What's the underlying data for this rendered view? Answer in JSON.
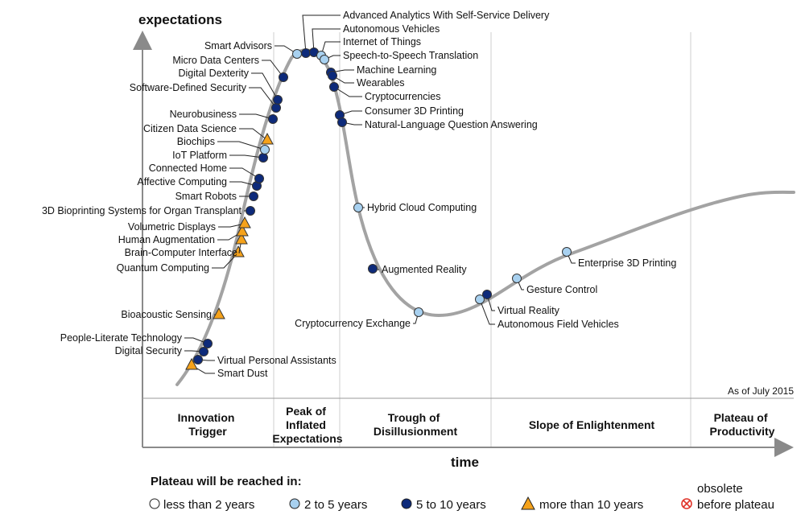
{
  "axes": {
    "y_label": "expectations",
    "x_label": "time"
  },
  "as_of": "As of July 2015",
  "phases": [
    {
      "id": "innovation-trigger",
      "lines": [
        "Innovation",
        "Trigger"
      ]
    },
    {
      "id": "peak",
      "lines": [
        "Peak of",
        "Inflated",
        "Expectations"
      ]
    },
    {
      "id": "trough",
      "lines": [
        "Trough of",
        "Disillusionment"
      ]
    },
    {
      "id": "slope",
      "lines": [
        "Slope of Enlightenment"
      ]
    },
    {
      "id": "plateau",
      "lines": [
        "Plateau of",
        "Productivity"
      ]
    }
  ],
  "legend": {
    "title": "Plateau will be reached in:",
    "items": [
      {
        "key": "lt2",
        "label": "less than 2 years",
        "marker": "circle",
        "color": "#ffffff"
      },
      {
        "key": "2to5",
        "label": "2 to 5 years",
        "marker": "circle",
        "color": "#a8d1f0"
      },
      {
        "key": "5to10",
        "label": "5 to 10 years",
        "marker": "circle",
        "color": "#0d2a7a"
      },
      {
        "key": "gt10",
        "label": "more than 10 years",
        "marker": "triangle",
        "color": "#f5a21b"
      },
      {
        "key": "obsolete",
        "label_lines": [
          "obsolete",
          "before plateau"
        ],
        "marker": "cross",
        "color": "#e0342a"
      }
    ]
  },
  "colors": {
    "curve": "#a3a3a3",
    "axis": "#888888",
    "light_blue": "#a8d1f0",
    "dark_blue": "#0d2a7a",
    "orange": "#f5a21b"
  },
  "technologies": [
    {
      "name": "Smart Dust",
      "cat": "gt10"
    },
    {
      "name": "Virtual Personal Assistants",
      "cat": "5to10"
    },
    {
      "name": "Digital Security",
      "cat": "5to10"
    },
    {
      "name": "People-Literate Technology",
      "cat": "5to10"
    },
    {
      "name": "Bioacoustic Sensing",
      "cat": "gt10"
    },
    {
      "name": "Quantum Computing",
      "cat": "gt10"
    },
    {
      "name": "Brain-Computer Interface",
      "cat": "gt10"
    },
    {
      "name": "Human Augmentation",
      "cat": "gt10"
    },
    {
      "name": "Volumetric Displays",
      "cat": "gt10"
    },
    {
      "name": "3D Bioprinting Systems for Organ Transplant",
      "cat": "5to10"
    },
    {
      "name": "Smart Robots",
      "cat": "5to10"
    },
    {
      "name": "Affective Computing",
      "cat": "5to10"
    },
    {
      "name": "Connected Home",
      "cat": "5to10"
    },
    {
      "name": "IoT Platform",
      "cat": "5to10"
    },
    {
      "name": "Biochips",
      "cat": "2to5"
    },
    {
      "name": "Citizen Data Science",
      "cat": "gt10"
    },
    {
      "name": "Neurobusiness",
      "cat": "5to10"
    },
    {
      "name": "Software-Defined Security",
      "cat": "5to10"
    },
    {
      "name": "Digital Dexterity",
      "cat": "5to10"
    },
    {
      "name": "Micro Data Centers",
      "cat": "5to10"
    },
    {
      "name": "Smart Advisors",
      "cat": "2to5"
    },
    {
      "name": "Advanced Analytics With Self-Service Delivery",
      "cat": "5to10"
    },
    {
      "name": "Autonomous Vehicles",
      "cat": "5to10"
    },
    {
      "name": "Internet of Things",
      "cat": "2to5"
    },
    {
      "name": "Speech-to-Speech Translation",
      "cat": "2to5"
    },
    {
      "name": "Machine Learning",
      "cat": "5to10"
    },
    {
      "name": "Wearables",
      "cat": "5to10"
    },
    {
      "name": "Cryptocurrencies",
      "cat": "5to10"
    },
    {
      "name": "Consumer 3D Printing",
      "cat": "5to10"
    },
    {
      "name": "Natural-Language Question Answering",
      "cat": "5to10"
    },
    {
      "name": "Hybrid Cloud Computing",
      "cat": "2to5"
    },
    {
      "name": "Augmented Reality",
      "cat": "5to10"
    },
    {
      "name": "Cryptocurrency Exchange",
      "cat": "2to5"
    },
    {
      "name": "Virtual Reality",
      "cat": "5to10"
    },
    {
      "name": "Autonomous Field Vehicles",
      "cat": "2to5"
    },
    {
      "name": "Gesture Control",
      "cat": "2to5"
    },
    {
      "name": "Enterprise 3D Printing",
      "cat": "2to5"
    }
  ]
}
